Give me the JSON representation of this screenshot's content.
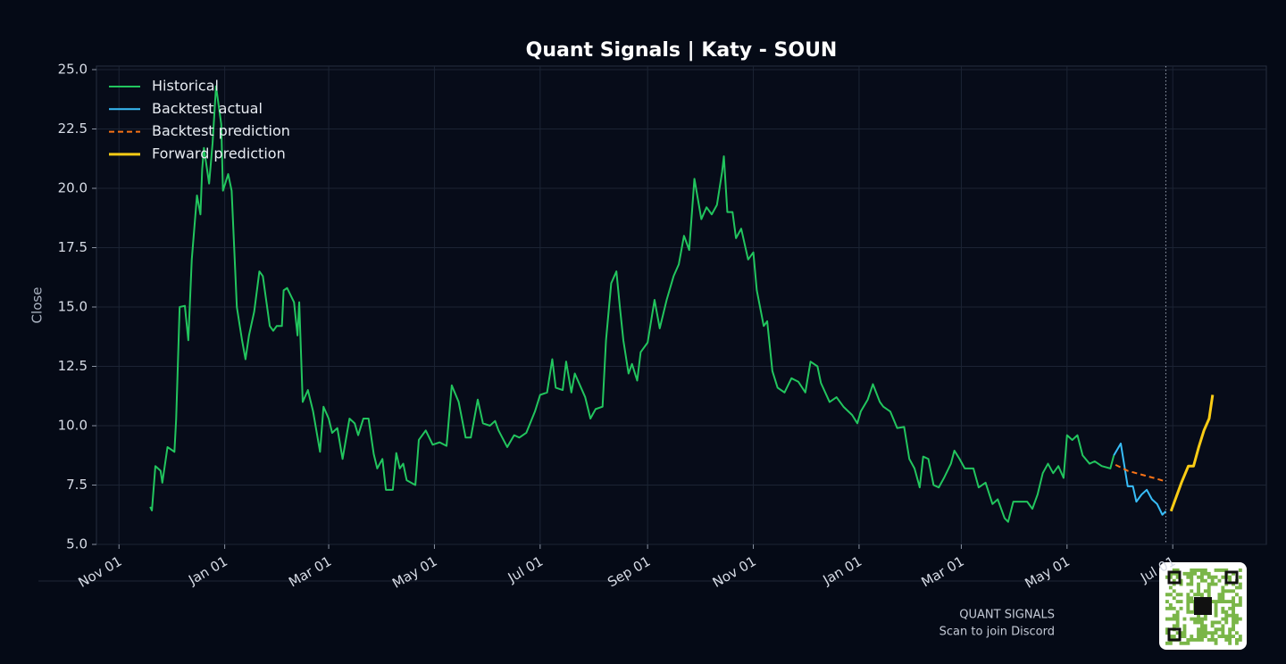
{
  "chart_data": {
    "type": "line",
    "title": "Quant Signals | Katy - SOUN",
    "ylabel": "Close",
    "footer": [
      "QUANT SIGNALS",
      "Scan to join Discord"
    ],
    "xlim": [
      -13,
      662
    ],
    "ylim": [
      5,
      25.15
    ],
    "xticks": [
      {
        "value": 0,
        "label": "Nov 01"
      },
      {
        "value": 61,
        "label": "Jan 01"
      },
      {
        "value": 121,
        "label": "Mar 01"
      },
      {
        "value": 182,
        "label": "May 01"
      },
      {
        "value": 243,
        "label": "Jul 01"
      },
      {
        "value": 305,
        "label": "Sep 01"
      },
      {
        "value": 366,
        "label": "Nov 01"
      },
      {
        "value": 427,
        "label": "Jan 01"
      },
      {
        "value": 486,
        "label": "Mar 01"
      },
      {
        "value": 547,
        "label": "May 01"
      },
      {
        "value": 608,
        "label": "Jul 01"
      }
    ],
    "yticks": [
      {
        "value": 5,
        "label": "5.0"
      },
      7.5,
      {
        "value": 10,
        "label": "10.0"
      },
      12.5,
      {
        "value": 15,
        "label": "15.0"
      },
      17.5,
      {
        "value": 20,
        "label": "20.0"
      },
      22.5,
      {
        "value": 25,
        "label": "25.0"
      }
    ],
    "grid": true,
    "legend": "upper left",
    "series": [
      {
        "name": "Historical",
        "color": "#22c55e",
        "linestyle": "solid",
        "x": [
          18,
          19,
          21,
          24,
          25,
          28,
          32,
          33,
          35,
          38,
          40,
          42,
          45,
          47,
          48,
          49,
          52,
          54,
          56,
          59,
          60,
          63,
          65,
          68,
          71,
          73,
          75,
          78,
          81,
          83,
          87,
          89,
          91,
          94,
          95,
          97,
          101,
          103,
          104,
          106,
          109,
          112,
          116,
          118,
          121,
          123,
          126,
          129,
          133,
          136,
          138,
          141,
          144,
          147,
          149,
          152,
          154,
          158,
          160,
          162,
          164,
          166,
          171,
          173,
          177,
          181,
          185,
          189,
          192,
          196,
          200,
          203,
          207,
          210,
          214,
          217,
          219,
          224,
          228,
          231,
          235,
          240,
          243,
          247,
          250,
          252,
          256,
          258,
          261,
          263,
          269,
          272,
          275,
          279,
          281,
          284,
          287,
          289,
          291,
          294,
          296,
          299,
          301,
          305,
          309,
          312,
          316,
          320,
          323,
          326,
          329,
          332,
          336,
          339,
          342,
          345,
          348,
          349,
          351,
          354,
          356,
          359,
          363,
          366,
          368,
          372,
          374,
          377,
          380,
          384,
          388,
          392,
          396,
          399,
          403,
          405,
          410,
          414,
          418,
          423,
          426,
          428,
          432,
          435,
          439,
          441,
          445,
          449,
          453,
          456,
          459,
          462,
          464,
          467,
          470,
          473,
          476,
          480,
          482,
          485,
          488,
          493,
          496,
          500,
          504,
          507,
          511,
          513,
          516,
          519,
          524,
          527,
          530,
          533,
          536,
          539,
          542,
          545,
          547,
          550,
          553,
          556,
          560,
          563,
          567,
          572,
          574
        ],
        "values": [
          6.58,
          6.43,
          8.3,
          8.1,
          7.6,
          9.1,
          8.9,
          10.3,
          15.0,
          15.05,
          13.6,
          17.0,
          19.7,
          18.9,
          20.8,
          21.7,
          20.2,
          21.9,
          24.3,
          22.7,
          19.9,
          20.6,
          19.9,
          15.0,
          13.6,
          12.8,
          13.8,
          14.8,
          16.5,
          16.3,
          14.2,
          14.0,
          14.2,
          14.2,
          15.7,
          15.8,
          15.2,
          13.8,
          15.2,
          11.0,
          11.5,
          10.6,
          8.9,
          10.8,
          10.3,
          9.7,
          9.9,
          8.6,
          10.3,
          10.1,
          9.6,
          10.3,
          10.3,
          8.8,
          8.2,
          8.6,
          7.3,
          7.3,
          8.85,
          8.2,
          8.4,
          7.7,
          7.5,
          9.4,
          9.8,
          9.2,
          9.3,
          9.15,
          11.7,
          11.0,
          9.5,
          9.5,
          11.1,
          10.1,
          10.0,
          10.2,
          9.8,
          9.1,
          9.6,
          9.5,
          9.7,
          10.6,
          11.3,
          11.4,
          12.8,
          11.6,
          11.5,
          12.7,
          11.4,
          12.2,
          11.2,
          10.3,
          10.7,
          10.8,
          13.6,
          16.0,
          16.5,
          15.0,
          13.6,
          12.2,
          12.6,
          11.9,
          13.1,
          13.5,
          15.3,
          14.1,
          15.3,
          16.3,
          16.8,
          18.0,
          17.4,
          20.4,
          18.7,
          19.2,
          18.9,
          19.3,
          20.7,
          21.35,
          19.0,
          19.0,
          17.9,
          18.3,
          17.0,
          17.3,
          15.7,
          14.2,
          14.4,
          12.3,
          11.6,
          11.4,
          12.0,
          11.85,
          11.4,
          12.7,
          12.5,
          11.8,
          11.0,
          11.2,
          10.8,
          10.45,
          10.1,
          10.6,
          11.1,
          11.75,
          11.0,
          10.8,
          10.6,
          9.9,
          9.95,
          8.6,
          8.2,
          7.4,
          8.7,
          8.6,
          7.5,
          7.4,
          7.8,
          8.4,
          8.95,
          8.6,
          8.2,
          8.2,
          7.4,
          7.6,
          6.7,
          6.9,
          6.1,
          5.95,
          6.8,
          6.8,
          6.8,
          6.5,
          7.1,
          8.0,
          8.4,
          8.0,
          8.3,
          7.8,
          9.6,
          9.4,
          9.6,
          8.75,
          8.4,
          8.5,
          8.3,
          8.2,
          8.75
        ]
      },
      {
        "name": "Backtest actual",
        "color": "#38bdf8",
        "linestyle": "solid",
        "x": [
          574,
          578,
          582,
          585,
          587,
          590,
          593,
          596,
          599,
          602,
          604
        ],
        "values": [
          8.75,
          9.25,
          7.45,
          7.45,
          6.8,
          7.1,
          7.3,
          6.9,
          6.7,
          6.25,
          6.4
        ]
      },
      {
        "name": "Backtest prediction",
        "color": "#f97316",
        "linestyle": "dashed",
        "x": [
          575,
          582,
          587,
          592,
          597,
          604
        ],
        "values": [
          8.35,
          8.1,
          8.0,
          7.9,
          7.8,
          7.65
        ]
      },
      {
        "name": "Forward prediction",
        "color": "#facc15",
        "linestyle": "solid",
        "linewidth": 3,
        "x": [
          607,
          610,
          613,
          617,
          620,
          623,
          626,
          629,
          631
        ],
        "values": [
          6.4,
          7.0,
          7.6,
          8.3,
          8.3,
          9.1,
          9.8,
          10.3,
          11.3
        ]
      }
    ]
  }
}
